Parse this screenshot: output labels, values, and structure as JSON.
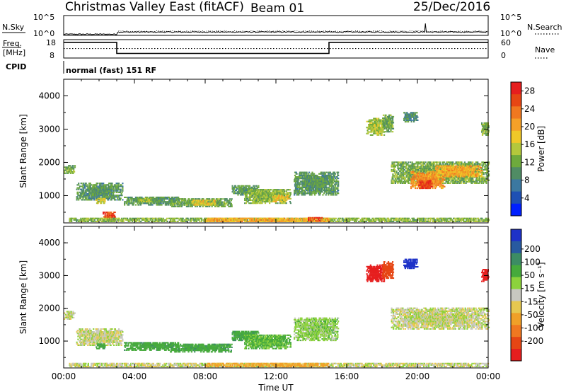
{
  "header": {
    "title": "Christmas Valley East (fitACF)",
    "beam": "Beam 01",
    "date": "25/Dec/2016"
  },
  "strip_labels": {
    "nsky": "N.Sky",
    "nsearch": "N.Search",
    "freq_line1": "Freq.",
    "freq_line2": "[MHz]",
    "nave": "Nave",
    "cpid": "CPID",
    "cpid_value": "normal (fast) 151 RF",
    "noise_left_ticks": [
      "10^5",
      "10^0"
    ],
    "noise_right_ticks": [
      "10^5",
      "10^0"
    ],
    "freq_left_ticks": [
      "18",
      "8"
    ],
    "nave_right_ticks": [
      "60",
      "0"
    ]
  },
  "chart_data": [
    {
      "type": "line",
      "name": "noise",
      "ylim_log10": [
        0,
        5
      ],
      "x_hours": [
        0,
        3,
        3.1,
        6,
        9,
        12,
        15,
        18,
        20.4,
        20.45,
        20.5,
        22,
        24
      ],
      "sky_log10": [
        0.3,
        0.3,
        0.8,
        0.8,
        0.9,
        0.9,
        0.85,
        0.9,
        0.9,
        3.0,
        0.9,
        0.8,
        0.8
      ]
    },
    {
      "type": "line",
      "name": "frequency_nave",
      "freq_ylim": [
        8,
        18
      ],
      "nave_ylim": [
        0,
        60
      ],
      "freq_steps": [
        [
          0,
          16.5
        ],
        [
          3,
          16.5
        ],
        [
          3,
          10.5
        ],
        [
          15,
          10.5
        ],
        [
          15,
          16.5
        ],
        [
          24,
          16.5
        ]
      ],
      "nave_level": 31
    },
    {
      "type": "heatmap",
      "name": "power",
      "ylabel": "Slant Range [km]",
      "xlabel": "Time UT",
      "xlim_hours": [
        0,
        24
      ],
      "ylim_km": [
        180,
        4500
      ],
      "x_ticks": [
        "00:00",
        "04:00",
        "08:00",
        "12:00",
        "16:00",
        "20:00",
        "00:00"
      ],
      "y_ticks": [
        1000,
        2000,
        3000,
        4000
      ],
      "colorbar": {
        "label": "Power [dB]",
        "ticks": [
          4,
          8,
          12,
          16,
          20,
          24,
          28
        ],
        "colors": [
          "#0020ff",
          "#1e50b4",
          "#3c78a0",
          "#508c64",
          "#6eaa3c",
          "#b4c83c",
          "#f0c828",
          "#f5a028",
          "#f07820",
          "#e64614",
          "#e61e1e"
        ]
      },
      "regions": [
        {
          "t": [
            0,
            0.6
          ],
          "r": [
            1650,
            1900
          ],
          "dB": 12
        },
        {
          "t": [
            0.7,
            3.3
          ],
          "r": [
            850,
            1350
          ],
          "dB": 10
        },
        {
          "t": [
            1.8,
            2.3
          ],
          "r": [
            750,
            900
          ],
          "dB": 16
        },
        {
          "t": [
            3.4,
            6.5
          ],
          "r": [
            700,
            950
          ],
          "dB": 10
        },
        {
          "t": [
            4.2,
            5.0
          ],
          "r": [
            800,
            900
          ],
          "dB": 14
        },
        {
          "t": [
            6.0,
            9.5
          ],
          "r": [
            650,
            900
          ],
          "dB": 11
        },
        {
          "t": [
            7.2,
            8.6
          ],
          "r": [
            700,
            850
          ],
          "dB": 17
        },
        {
          "t": [
            9.5,
            11.0
          ],
          "r": [
            1000,
            1300
          ],
          "dB": 10
        },
        {
          "t": [
            10.2,
            12.8
          ],
          "r": [
            750,
            1200
          ],
          "dB": 13
        },
        {
          "t": [
            11.8,
            12.7
          ],
          "r": [
            800,
            1000
          ],
          "dB": 18
        },
        {
          "t": [
            13.0,
            15.5
          ],
          "r": [
            1000,
            1700
          ],
          "dB": 10
        },
        {
          "t": [
            2.2,
            2.9
          ],
          "r": [
            250,
            500
          ],
          "dB": 27
        },
        {
          "t": [
            0.3,
            24.0
          ],
          "r": [
            200,
            330
          ],
          "dB": 13
        },
        {
          "t": [
            8.0,
            15.0
          ],
          "r": [
            200,
            330
          ],
          "dB": 20
        },
        {
          "t": [
            13.8,
            14.6
          ],
          "r": [
            220,
            330
          ],
          "dB": 27
        },
        {
          "t": [
            17.1,
            18.1
          ],
          "r": [
            2800,
            3300
          ],
          "dB": 14
        },
        {
          "t": [
            18.0,
            18.6
          ],
          "r": [
            2900,
            3400
          ],
          "dB": 11
        },
        {
          "t": [
            19.2,
            20.0
          ],
          "r": [
            3200,
            3500
          ],
          "dB": 9
        },
        {
          "t": [
            18.5,
            24.0
          ],
          "r": [
            1350,
            2000
          ],
          "dB": 12
        },
        {
          "t": [
            19.6,
            21.5
          ],
          "r": [
            1200,
            1700
          ],
          "dB": 22
        },
        {
          "t": [
            20.0,
            20.8
          ],
          "r": [
            1200,
            1450
          ],
          "dB": 28
        },
        {
          "t": [
            21.0,
            23.6
          ],
          "r": [
            1550,
            1900
          ],
          "dB": 20
        },
        {
          "t": [
            23.6,
            24.0
          ],
          "r": [
            2800,
            3200
          ],
          "dB": 12
        }
      ]
    },
    {
      "type": "heatmap",
      "name": "velocity",
      "ylabel": "Slant Range [km]",
      "xlabel": "Time UT",
      "xlim_hours": [
        0,
        24
      ],
      "ylim_km": [
        180,
        4500
      ],
      "x_ticks": [
        "00:00",
        "04:00",
        "08:00",
        "12:00",
        "16:00",
        "20:00",
        "00:00"
      ],
      "y_ticks": [
        1000,
        2000,
        3000,
        4000
      ],
      "colorbar": {
        "label": "Velocity [m s⁻¹]",
        "ticks": [
          "200",
          "100",
          "50",
          "15",
          "-15",
          "-50",
          "-100",
          "-200"
        ],
        "colors": [
          "#1e32c8",
          "#285aa0",
          "#3c8c64",
          "#46aa3c",
          "#8cd23c",
          "#c8c8c0",
          "#e6c850",
          "#f0a028",
          "#f07820",
          "#e64614",
          "#e61e1e"
        ]
      },
      "regions": [
        {
          "t": [
            0,
            0.6
          ],
          "r": [
            1650,
            1900
          ],
          "v": 0
        },
        {
          "t": [
            0.7,
            3.3
          ],
          "r": [
            850,
            1350
          ],
          "v": 0
        },
        {
          "t": [
            1.8,
            2.3
          ],
          "r": [
            750,
            900
          ],
          "v": 60
        },
        {
          "t": [
            3.4,
            6.5
          ],
          "r": [
            700,
            950
          ],
          "v": 60
        },
        {
          "t": [
            6.0,
            9.5
          ],
          "r": [
            650,
            900
          ],
          "v": 60
        },
        {
          "t": [
            9.5,
            11.0
          ],
          "r": [
            1000,
            1300
          ],
          "v": 60
        },
        {
          "t": [
            10.2,
            12.8
          ],
          "r": [
            750,
            1200
          ],
          "v": 40
        },
        {
          "t": [
            13.0,
            15.5
          ],
          "r": [
            1000,
            1700
          ],
          "v": 20
        },
        {
          "t": [
            0.3,
            24.0
          ],
          "r": [
            200,
            330
          ],
          "v": 0
        },
        {
          "t": [
            8.0,
            15.0
          ],
          "r": [
            200,
            330
          ],
          "v": -40
        },
        {
          "t": [
            17.1,
            18.1
          ],
          "r": [
            2800,
            3300
          ],
          "v": -220
        },
        {
          "t": [
            18.0,
            18.6
          ],
          "r": [
            2900,
            3400
          ],
          "v": -150
        },
        {
          "t": [
            19.2,
            20.0
          ],
          "r": [
            3200,
            3500
          ],
          "v": 220
        },
        {
          "t": [
            18.5,
            24.0
          ],
          "r": [
            1350,
            2000
          ],
          "v": 0
        },
        {
          "t": [
            23.6,
            24.0
          ],
          "r": [
            2800,
            3200
          ],
          "v": -200
        }
      ]
    }
  ]
}
